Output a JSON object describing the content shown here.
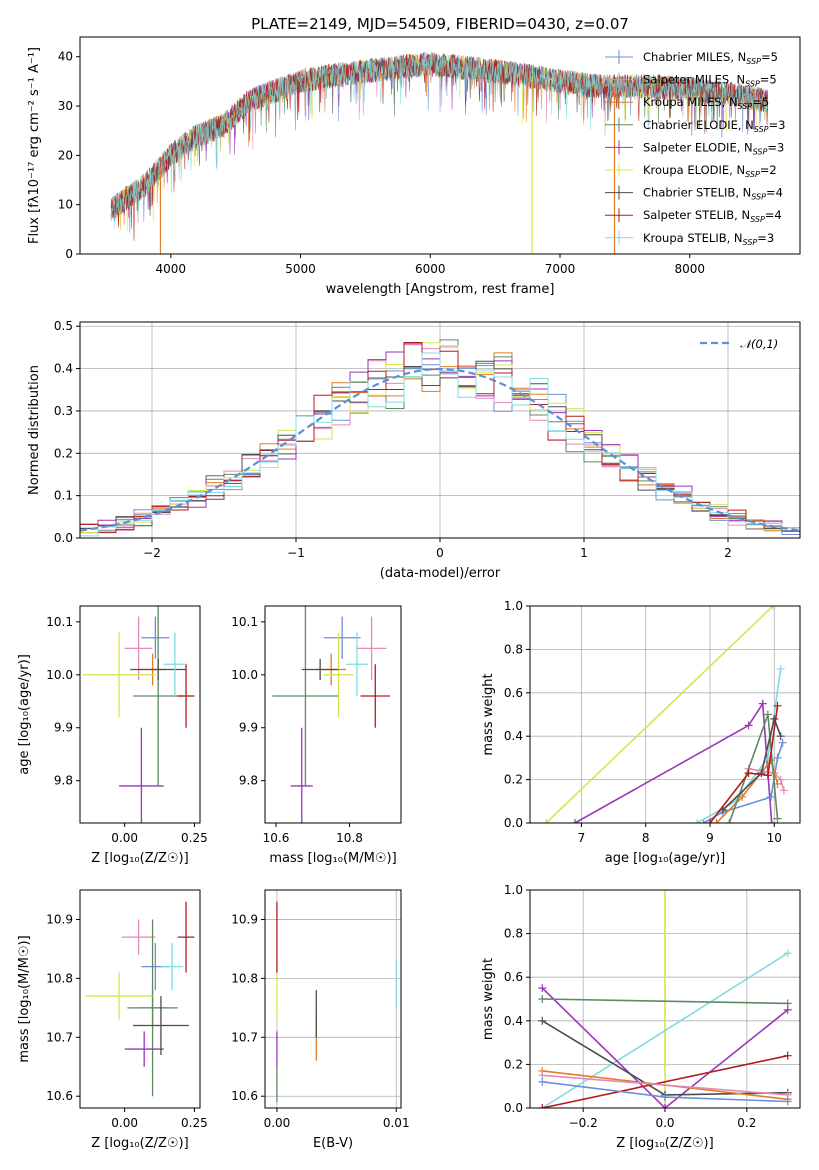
{
  "colors": {
    "chabrier_miles": "#6a8fdb",
    "salpeter_miles": "#e48ab8",
    "kroupa_miles": "#e07b28",
    "chabrier_elodie": "#5e8a60",
    "salpeter_elodie": "#9a36b8",
    "kroupa_elodie": "#d9e352",
    "chabrier_stelib": "#4d4d4d",
    "salpeter_stelib": "#b51b1b",
    "kroupa_stelib": "#80dbe0",
    "gaussian": "#5b8fd6"
  },
  "figure_title": "PLATE=2149, MJD=54509, FIBERID=0430, z=0.07",
  "legend": [
    {
      "key": "chabrier_miles",
      "base": "Chabrier MILES, N",
      "sub": "SSP",
      "tail": "=5"
    },
    {
      "key": "salpeter_miles",
      "base": "Salpeter MILES, N",
      "sub": "SSP",
      "tail": "=5"
    },
    {
      "key": "kroupa_miles",
      "base": "Kroupa MILES, N",
      "sub": "SSP",
      "tail": "=5"
    },
    {
      "key": "chabrier_elodie",
      "base": "Chabrier ELODIE, N",
      "sub": "SSP",
      "tail": "=3"
    },
    {
      "key": "salpeter_elodie",
      "base": "Salpeter ELODIE, N",
      "sub": "SSP",
      "tail": "=3"
    },
    {
      "key": "kroupa_elodie",
      "base": "Kroupa ELODIE, N",
      "sub": "SSP",
      "tail": "=2"
    },
    {
      "key": "chabrier_stelib",
      "base": "Chabrier STELIB, N",
      "sub": "SSP",
      "tail": "=4"
    },
    {
      "key": "salpeter_stelib",
      "base": "Salpeter STELIB, N",
      "sub": "SSP",
      "tail": "=4"
    },
    {
      "key": "kroupa_stelib",
      "base": "Kroupa STELIB, N",
      "sub": "SSP",
      "tail": "=3"
    }
  ],
  "chart_data": [
    {
      "id": "spectrum",
      "type": "line",
      "xlabel": "wavelength [Angstrom, rest frame]",
      "ylabel": "Flux [fλ10⁻¹⁷ erg cm⁻² s⁻¹ A⁻¹]",
      "xlim": [
        3300,
        8850
      ],
      "ylim": [
        0,
        44
      ],
      "xticks": [
        4000,
        5000,
        6000,
        7000,
        8000
      ],
      "yticks": [
        0,
        10,
        20,
        30,
        40
      ],
      "continuum": [
        [
          3540,
          9
        ],
        [
          3800,
          14
        ],
        [
          4000,
          20
        ],
        [
          4200,
          24
        ],
        [
          4400,
          26
        ],
        [
          4600,
          31
        ],
        [
          4800,
          33
        ],
        [
          5000,
          35
        ],
        [
          5200,
          36
        ],
        [
          5500,
          37
        ],
        [
          5800,
          38
        ],
        [
          6000,
          38.5
        ],
        [
          6200,
          38
        ],
        [
          6500,
          37
        ],
        [
          6800,
          36
        ],
        [
          7000,
          35
        ],
        [
          7300,
          34
        ],
        [
          7600,
          34
        ],
        [
          8000,
          33.5
        ],
        [
          8400,
          32
        ],
        [
          8600,
          31
        ]
      ],
      "spikes": [
        {
          "x": 3920,
          "y": 0
        },
        {
          "x": 6785,
          "y": 0
        },
        {
          "x": 7420,
          "y": 0
        }
      ],
      "grid": false
    },
    {
      "id": "residuals",
      "type": "histogram",
      "xlabel": "(data-model)/error",
      "ylabel": "Normed distribution",
      "xlim": [
        -2.5,
        2.5
      ],
      "ylim": [
        0,
        0.51
      ],
      "xticks": [
        -2,
        -1,
        0,
        1,
        2
      ],
      "yticks": [
        0,
        0.1,
        0.2,
        0.3,
        0.4,
        0.5
      ],
      "bins": 40,
      "reference": "𝒩(0,1)",
      "grid": true
    },
    {
      "id": "age-vs-Z",
      "type": "scatter",
      "xlabel": "Z [log₁₀(Z/Z☉)]",
      "ylabel": "age  [log₁₀(age/yr)]",
      "xlim": [
        -0.16,
        0.27
      ],
      "ylim": [
        9.72,
        10.13
      ],
      "xticks": [
        0,
        0.25
      ],
      "yticks": [
        9.8,
        9.9,
        10.0,
        10.1
      ],
      "points": [
        {
          "key": "chabrier_miles",
          "x": 0.11,
          "y": 10.07,
          "xerr": 0.05,
          "yerr": 0.04
        },
        {
          "key": "salpeter_miles",
          "x": 0.05,
          "y": 10.05,
          "xerr": 0.05,
          "yerr": 0.06
        },
        {
          "key": "kroupa_miles",
          "x": 0.1,
          "y": 10.01,
          "xerr": 0.05,
          "yerr": 0.03
        },
        {
          "key": "chabrier_elodie",
          "x": 0.12,
          "y": 9.96,
          "xerr": 0.09,
          "yerr": 0.17
        },
        {
          "key": "salpeter_elodie",
          "x": 0.06,
          "y": 9.79,
          "xerr": 0.08,
          "yerr": 0.11
        },
        {
          "key": "kroupa_elodie",
          "x": -0.02,
          "y": 10.0,
          "xerr": 0.13,
          "yerr": 0.08
        },
        {
          "key": "chabrier_stelib",
          "x": 0.12,
          "y": 10.01,
          "xerr": 0.1,
          "yerr": 0.02
        },
        {
          "key": "salpeter_stelib",
          "x": 0.22,
          "y": 9.96,
          "xerr": 0.03,
          "yerr": 0.06
        },
        {
          "key": "kroupa_stelib",
          "x": 0.18,
          "y": 10.02,
          "xerr": 0.04,
          "yerr": 0.06
        }
      ],
      "grid": false
    },
    {
      "id": "age-vs-mass",
      "type": "scatter",
      "xlabel": "mass [log₁₀(M/M☉)]",
      "ylabel": "",
      "xlim": [
        10.57,
        10.94
      ],
      "ylim": [
        9.72,
        10.13
      ],
      "xticks": [
        10.6,
        10.8
      ],
      "yticks": [
        9.8,
        9.9,
        10.0,
        10.1
      ],
      "points": [
        {
          "key": "chabrier_miles",
          "x": 10.78,
          "y": 10.07,
          "xerr": 0.05,
          "yerr": 0.04
        },
        {
          "key": "salpeter_miles",
          "x": 10.86,
          "y": 10.05,
          "xerr": 0.04,
          "yerr": 0.06
        },
        {
          "key": "kroupa_miles",
          "x": 10.75,
          "y": 10.01,
          "xerr": 0.04,
          "yerr": 0.03
        },
        {
          "key": "chabrier_elodie",
          "x": 10.68,
          "y": 9.96,
          "xerr": 0.09,
          "yerr": 0.17
        },
        {
          "key": "salpeter_elodie",
          "x": 10.67,
          "y": 9.79,
          "xerr": 0.03,
          "yerr": 0.11
        },
        {
          "key": "kroupa_elodie",
          "x": 10.77,
          "y": 10.0,
          "xerr": 0.04,
          "yerr": 0.08
        },
        {
          "key": "chabrier_stelib",
          "x": 10.72,
          "y": 10.01,
          "xerr": 0.05,
          "yerr": 0.02
        },
        {
          "key": "salpeter_stelib",
          "x": 10.87,
          "y": 9.96,
          "xerr": 0.04,
          "yerr": 0.06
        },
        {
          "key": "kroupa_stelib",
          "x": 10.82,
          "y": 10.02,
          "xerr": 0.03,
          "yerr": 0.06
        }
      ],
      "grid": false
    },
    {
      "id": "weight-vs-age",
      "type": "line",
      "xlabel": "age  [log₁₀(age/yr)]",
      "ylabel": "mass weight",
      "xlim": [
        6.2,
        10.4
      ],
      "ylim": [
        0,
        1
      ],
      "xticks": [
        7,
        8,
        9,
        10
      ],
      "yticks": [
        0,
        0.2,
        0.4,
        0.6,
        0.8,
        1.0
      ],
      "series": [
        {
          "key": "kroupa_elodie",
          "x": [
            6.45,
            9.98
          ],
          "y": [
            0,
            1
          ]
        },
        {
          "key": "salpeter_elodie",
          "x": [
            6.9,
            9.6,
            9.82,
            9.96
          ],
          "y": [
            0,
            0.45,
            0.55,
            0.0
          ]
        },
        {
          "key": "chabrier_miles",
          "x": [
            8.9,
            9.2,
            9.95,
            10.05,
            10.13
          ],
          "y": [
            0,
            0.05,
            0.12,
            0.3,
            0.37
          ]
        },
        {
          "key": "kroupa_stelib",
          "x": [
            8.8,
            9.4,
            9.9,
            10.1
          ],
          "y": [
            0,
            0.1,
            0.3,
            0.71
          ]
        },
        {
          "key": "salpeter_miles",
          "x": [
            9.6,
            10.0,
            10.1,
            10.15
          ],
          "y": [
            0.25,
            0.23,
            0.2,
            0.15
          ]
        },
        {
          "key": "kroupa_miles",
          "x": [
            9.1,
            9.5,
            9.95,
            10.05
          ],
          "y": [
            0,
            0.12,
            0.29,
            0.18
          ]
        },
        {
          "key": "chabrier_elodie",
          "x": [
            9.3,
            9.9,
            10.05
          ],
          "y": [
            0.0,
            0.5,
            0.02
          ]
        },
        {
          "key": "chabrier_stelib",
          "x": [
            9.2,
            9.8,
            10.0,
            10.1
          ],
          "y": [
            0.06,
            0.23,
            0.48,
            0.4
          ]
        },
        {
          "key": "salpeter_stelib",
          "x": [
            9.0,
            9.6,
            9.9,
            10.05
          ],
          "y": [
            0,
            0.23,
            0.22,
            0.54
          ]
        }
      ],
      "grid": true
    },
    {
      "id": "mass-vs-Z",
      "type": "scatter",
      "xlabel": "Z [log₁₀(Z/Z☉)]",
      "ylabel": "mass [log₁₀(M/M☉)]",
      "xlim": [
        -0.16,
        0.27
      ],
      "ylim": [
        10.58,
        10.95
      ],
      "xticks": [
        0,
        0.25
      ],
      "yticks": [
        10.6,
        10.7,
        10.8,
        10.9
      ],
      "points": [
        {
          "key": "chabrier_miles",
          "x": 0.11,
          "y": 10.82,
          "xerr": 0.05,
          "yerr": 0.04
        },
        {
          "key": "salpeter_miles",
          "x": 0.05,
          "y": 10.87,
          "xerr": 0.06,
          "yerr": 0.03
        },
        {
          "key": "kroupa_miles",
          "x": 0.1,
          "y": 10.75,
          "xerr": 0.05,
          "yerr": 0.03
        },
        {
          "key": "chabrier_elodie",
          "x": 0.1,
          "y": 10.75,
          "xerr": 0.09,
          "yerr": 0.15
        },
        {
          "key": "salpeter_elodie",
          "x": 0.07,
          "y": 10.68,
          "xerr": 0.07,
          "yerr": 0.03
        },
        {
          "key": "kroupa_elodie",
          "x": -0.02,
          "y": 10.77,
          "xerr": 0.12,
          "yerr": 0.04
        },
        {
          "key": "chabrier_stelib",
          "x": 0.13,
          "y": 10.72,
          "xerr": 0.1,
          "yerr": 0.05
        },
        {
          "key": "salpeter_stelib",
          "x": 0.22,
          "y": 10.87,
          "xerr": 0.03,
          "yerr": 0.06
        },
        {
          "key": "kroupa_stelib",
          "x": 0.17,
          "y": 10.82,
          "xerr": 0.04,
          "yerr": 0.04
        }
      ],
      "grid": false
    },
    {
      "id": "mass-vs-EBV",
      "type": "scatter",
      "xlabel": "E(B-V)",
      "ylabel": "",
      "xlim": [
        -0.001,
        0.0104
      ],
      "ylim": [
        10.58,
        10.95
      ],
      "xticks": [
        0.0,
        0.01
      ],
      "xticklabels": [
        "0.00",
        "0.01"
      ],
      "yticks": [
        10.6,
        10.7,
        10.8,
        10.9
      ],
      "points": [
        {
          "key": "salpeter_stelib",
          "x": 0.0,
          "y": 10.87,
          "xerr": 0,
          "yerr": 0.06
        },
        {
          "key": "kroupa_elodie",
          "x": 0.0,
          "y": 10.77,
          "xerr": 0,
          "yerr": 0.04
        },
        {
          "key": "salpeter_elodie",
          "x": 0.0,
          "y": 10.68,
          "xerr": 0,
          "yerr": 0.03
        },
        {
          "key": "chabrier_elodie",
          "x": 0.0,
          "y": 10.62,
          "xerr": 0,
          "yerr": 0.03
        },
        {
          "key": "kroupa_miles",
          "x": 0.0033,
          "y": 10.7,
          "xerr": 0,
          "yerr": 0.04
        },
        {
          "key": "chabrier_stelib",
          "x": 0.0033,
          "y": 10.74,
          "xerr": 0,
          "yerr": 0.04
        },
        {
          "key": "kroupa_stelib",
          "x": 0.01,
          "y": 10.79,
          "xerr": 0,
          "yerr": 0.04
        }
      ],
      "grid": true
    },
    {
      "id": "weight-vs-Z",
      "type": "line",
      "xlabel": "Z [log₁₀(Z/Z☉)]",
      "ylabel": "mass weight",
      "xlim": [
        -0.33,
        0.33
      ],
      "ylim": [
        0,
        1
      ],
      "xticks": [
        -0.2,
        0.0,
        0.2
      ],
      "yticks": [
        0,
        0.2,
        0.4,
        0.6,
        0.8,
        1.0
      ],
      "series": [
        {
          "key": "kroupa_elodie",
          "x": [
            0.0,
            0.0
          ],
          "y": [
            0,
            1
          ]
        },
        {
          "key": "kroupa_stelib",
          "x": [
            -0.3,
            0.3
          ],
          "y": [
            0,
            0.71
          ]
        },
        {
          "key": "salpeter_elodie",
          "x": [
            -0.3,
            0.0,
            0.3
          ],
          "y": [
            0.55,
            0.0,
            0.45
          ]
        },
        {
          "key": "chabrier_elodie",
          "x": [
            -0.3,
            0.3
          ],
          "y": [
            0.5,
            0.48
          ]
        },
        {
          "key": "chabrier_stelib",
          "x": [
            -0.3,
            0.0,
            0.3
          ],
          "y": [
            0.4,
            0.06,
            0.07
          ]
        },
        {
          "key": "salpeter_stelib",
          "x": [
            -0.3,
            0.3
          ],
          "y": [
            0,
            0.24
          ]
        },
        {
          "key": "kroupa_miles",
          "x": [
            -0.3,
            0.3
          ],
          "y": [
            0.17,
            0.04
          ]
        },
        {
          "key": "salpeter_miles",
          "x": [
            -0.3,
            0.3
          ],
          "y": [
            0.15,
            0.06
          ]
        },
        {
          "key": "chabrier_miles",
          "x": [
            -0.3,
            0.0,
            0.3
          ],
          "y": [
            0.12,
            0.05,
            0.03
          ]
        }
      ],
      "grid": true
    }
  ]
}
